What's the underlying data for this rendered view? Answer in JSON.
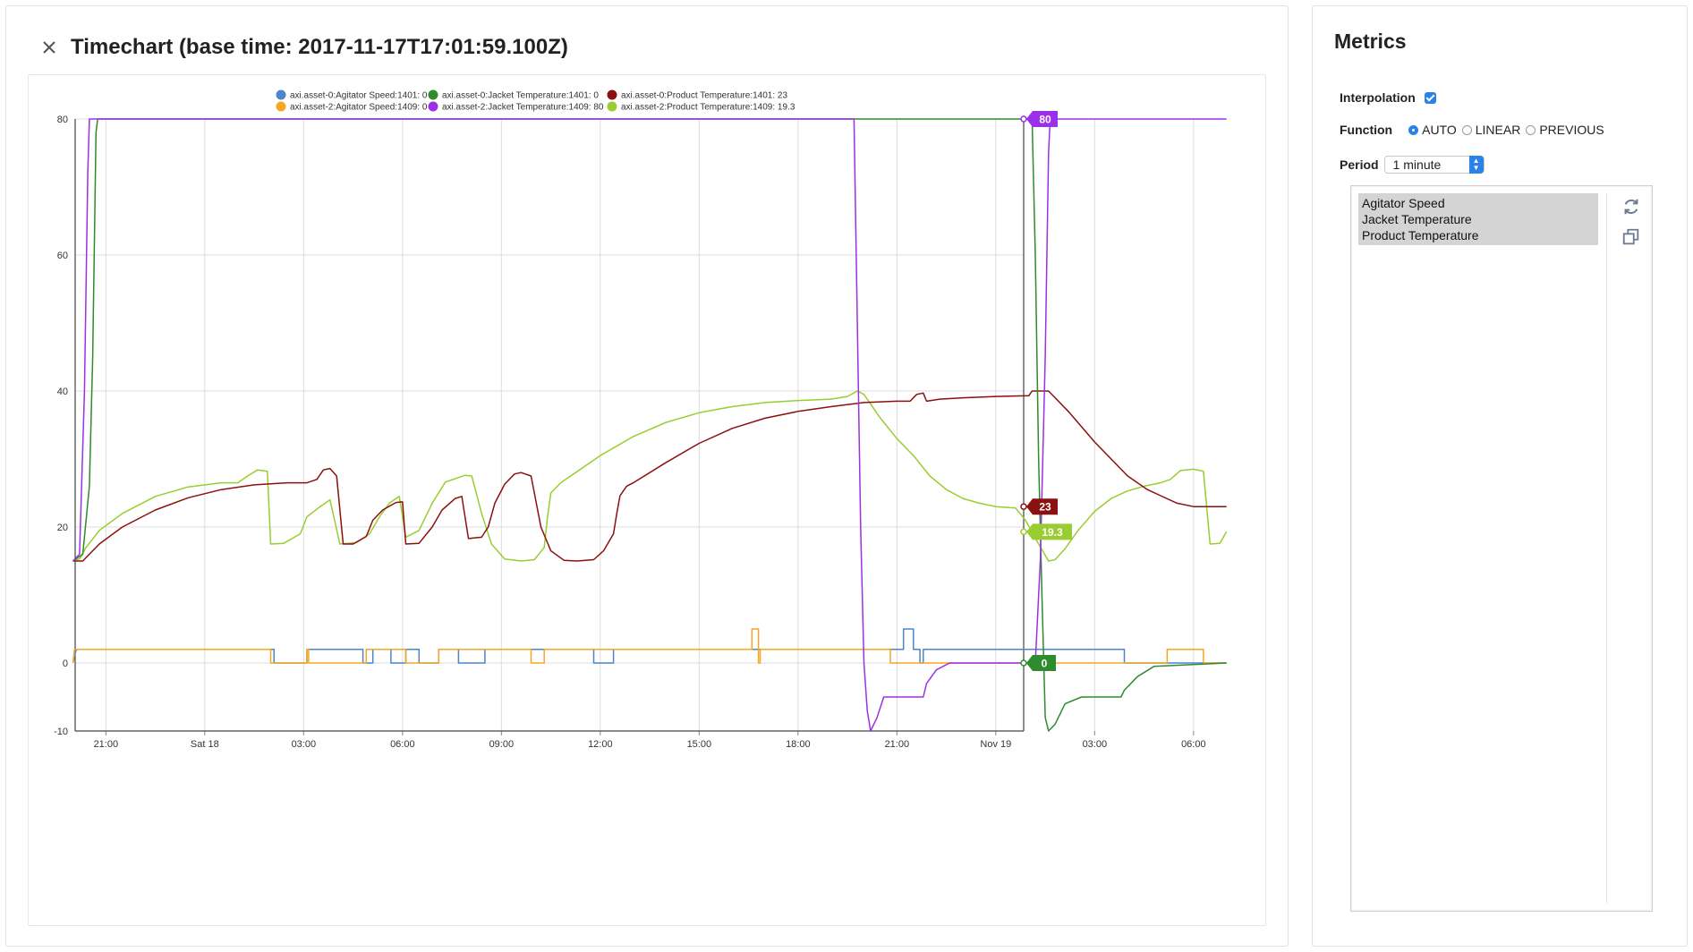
{
  "timechart": {
    "title": "Timechart (base time: 2017-11-17T17:01:59.100Z)"
  },
  "metrics_panel": {
    "title": "Metrics",
    "interpolation_label": "Interpolation",
    "interpolation_checked": true,
    "function_label": "Function",
    "function_options": [
      "AUTO",
      "LINEAR",
      "PREVIOUS"
    ],
    "function_selected": "AUTO",
    "period_label": "Period",
    "period_value": "1 minute",
    "metrics": [
      "Agitator Speed",
      "Jacket Temperature",
      "Product Temperature"
    ],
    "refresh_icon": "refresh-icon",
    "copy_icon": "copy-icon"
  },
  "chart_data": {
    "type": "line",
    "ylim": [
      -10,
      80
    ],
    "yticks": [
      "-10",
      "0",
      "20",
      "40",
      "60",
      "80"
    ],
    "xticks": [
      "21:00",
      "Sat 18",
      "03:00",
      "06:00",
      "09:00",
      "12:00",
      "15:00",
      "18:00",
      "21:00",
      "Nov 19",
      "03:00",
      "06:00"
    ],
    "x_unit": "hours after 2017-11-17T20:00",
    "xlim": [
      0,
      35
    ],
    "legend_position": "top-center",
    "grid": true,
    "series": [
      {
        "name": "axi.asset-0:Agitator Speed:1401: 0",
        "color": "#4a86c8",
        "last_value": null,
        "points": [
          [
            0,
            0
          ],
          [
            0.1,
            2
          ],
          [
            6.1,
            2
          ],
          [
            6.1,
            0
          ],
          [
            7.1,
            0
          ],
          [
            7.1,
            2
          ],
          [
            8.8,
            2
          ],
          [
            8.8,
            0
          ],
          [
            9.1,
            0
          ],
          [
            9.1,
            2
          ],
          [
            9.65,
            2
          ],
          [
            9.65,
            0
          ],
          [
            10.1,
            0
          ],
          [
            10.1,
            2
          ],
          [
            10.5,
            2
          ],
          [
            10.5,
            0
          ],
          [
            11.1,
            0
          ],
          [
            11.1,
            2
          ],
          [
            11.7,
            2
          ],
          [
            11.7,
            0
          ],
          [
            12.5,
            0
          ],
          [
            12.5,
            2
          ],
          [
            15.8,
            2
          ],
          [
            15.8,
            0
          ],
          [
            16.4,
            0
          ],
          [
            16.4,
            2
          ],
          [
            25.2,
            2
          ],
          [
            25.2,
            5
          ],
          [
            25.5,
            5
          ],
          [
            25.5,
            2
          ],
          [
            25.7,
            2
          ],
          [
            25.7,
            0
          ],
          [
            25.8,
            0
          ],
          [
            25.8,
            2
          ],
          [
            31.9,
            2
          ],
          [
            31.9,
            0
          ],
          [
            35,
            0
          ]
        ]
      },
      {
        "name": "axi.asset-2:Agitator Speed:1409: 0",
        "color": "#f5a623",
        "last_value": null,
        "points": [
          [
            0,
            0
          ],
          [
            0.05,
            2
          ],
          [
            6.0,
            2
          ],
          [
            6.0,
            0
          ],
          [
            7.1,
            0
          ],
          [
            7.1,
            2
          ],
          [
            7.15,
            2
          ],
          [
            7.15,
            0
          ],
          [
            8.9,
            0
          ],
          [
            8.9,
            2
          ],
          [
            10.1,
            2
          ],
          [
            10.1,
            0
          ],
          [
            11.1,
            0
          ],
          [
            11.1,
            2
          ],
          [
            13.9,
            2
          ],
          [
            13.9,
            0
          ],
          [
            14.3,
            0
          ],
          [
            14.3,
            2
          ],
          [
            20.6,
            2
          ],
          [
            20.6,
            5
          ],
          [
            20.8,
            5
          ],
          [
            20.8,
            0
          ],
          [
            20.85,
            0
          ],
          [
            20.85,
            2
          ],
          [
            24.8,
            2
          ],
          [
            24.8,
            0
          ],
          [
            33.2,
            0
          ],
          [
            33.2,
            2
          ],
          [
            34.3,
            2
          ],
          [
            34.3,
            0
          ],
          [
            35,
            0
          ]
        ]
      },
      {
        "name": "axi.asset-0:Jacket Temperature:1401: 0",
        "color": "#2e8b2e",
        "last_value": "0",
        "points": [
          [
            0,
            15
          ],
          [
            0.3,
            16
          ],
          [
            0.5,
            26
          ],
          [
            0.6,
            45
          ],
          [
            0.7,
            78
          ],
          [
            0.75,
            80
          ],
          [
            29.1,
            80
          ],
          [
            29.2,
            60
          ],
          [
            29.3,
            30
          ],
          [
            29.4,
            10
          ],
          [
            29.5,
            -8
          ],
          [
            29.6,
            -10
          ],
          [
            29.8,
            -9
          ],
          [
            30.1,
            -6
          ],
          [
            30.6,
            -5
          ],
          [
            31.8,
            -5
          ],
          [
            31.9,
            -4
          ],
          [
            32.3,
            -2
          ],
          [
            32.8,
            -0.5
          ],
          [
            35,
            0
          ]
        ]
      },
      {
        "name": "axi.asset-2:Jacket Temperature:1409: 80",
        "color": "#9b30e8",
        "last_value": "80",
        "points": [
          [
            0,
            15
          ],
          [
            0.2,
            16
          ],
          [
            0.35,
            40
          ],
          [
            0.45,
            72
          ],
          [
            0.5,
            80
          ],
          [
            23.7,
            80
          ],
          [
            23.8,
            50
          ],
          [
            23.9,
            20
          ],
          [
            24.0,
            0
          ],
          [
            24.1,
            -7
          ],
          [
            24.2,
            -10
          ],
          [
            24.4,
            -8
          ],
          [
            24.6,
            -5
          ],
          [
            25.8,
            -5
          ],
          [
            25.9,
            -3
          ],
          [
            26.2,
            -1
          ],
          [
            26.6,
            0
          ],
          [
            29.2,
            0
          ],
          [
            29.35,
            15
          ],
          [
            29.5,
            45
          ],
          [
            29.6,
            75
          ],
          [
            29.65,
            80
          ],
          [
            35,
            80
          ]
        ]
      },
      {
        "name": "axi.asset-0:Product Temperature:1401: 23",
        "color": "#8b1010",
        "last_value": "23",
        "points": [
          [
            0,
            15
          ],
          [
            0.3,
            15
          ],
          [
            0.5,
            16
          ],
          [
            0.8,
            17.5
          ],
          [
            1.5,
            20
          ],
          [
            2.5,
            22.5
          ],
          [
            3.5,
            24.3
          ],
          [
            4.5,
            25.5
          ],
          [
            5.5,
            26.2
          ],
          [
            6.5,
            26.5
          ],
          [
            7.0,
            26.5
          ],
          [
            7.1,
            26.5
          ],
          [
            7.4,
            27
          ],
          [
            7.6,
            28.4
          ],
          [
            7.8,
            28.6
          ],
          [
            8.0,
            27.5
          ],
          [
            8.2,
            17.5
          ],
          [
            8.5,
            17.5
          ],
          [
            8.9,
            18.6
          ],
          [
            9.1,
            21
          ],
          [
            9.4,
            22.5
          ],
          [
            9.8,
            23.6
          ],
          [
            10.0,
            23.7
          ],
          [
            10.1,
            17.5
          ],
          [
            10.5,
            17.6
          ],
          [
            10.9,
            20
          ],
          [
            11.2,
            22.5
          ],
          [
            11.6,
            24.2
          ],
          [
            11.8,
            24.5
          ],
          [
            12.0,
            18.3
          ],
          [
            12.4,
            18.5
          ],
          [
            12.6,
            20
          ],
          [
            12.8,
            23.5
          ],
          [
            13.1,
            26.3
          ],
          [
            13.4,
            27.8
          ],
          [
            13.6,
            28
          ],
          [
            13.9,
            27.5
          ],
          [
            14.2,
            20
          ],
          [
            14.5,
            16.5
          ],
          [
            14.9,
            15.1
          ],
          [
            15.3,
            15
          ],
          [
            15.8,
            15.2
          ],
          [
            16.1,
            16.5
          ],
          [
            16.4,
            19
          ],
          [
            16.5,
            22
          ],
          [
            16.6,
            24.6
          ],
          [
            16.8,
            26
          ],
          [
            17.0,
            26.5
          ],
          [
            18.0,
            29.5
          ],
          [
            19.0,
            32.3
          ],
          [
            20.0,
            34.5
          ],
          [
            21.0,
            36
          ],
          [
            22.0,
            37
          ],
          [
            23.0,
            37.7
          ],
          [
            24.0,
            38.3
          ],
          [
            25.0,
            38.5
          ],
          [
            25.4,
            38.5
          ],
          [
            25.6,
            39.5
          ],
          [
            25.8,
            39.7
          ],
          [
            25.9,
            38.5
          ],
          [
            26.3,
            38.8
          ],
          [
            27.0,
            39
          ],
          [
            28.0,
            39.2
          ],
          [
            29.0,
            39.3
          ],
          [
            29.1,
            40
          ],
          [
            29.6,
            40
          ],
          [
            30.2,
            37
          ],
          [
            31.0,
            32.5
          ],
          [
            32.0,
            27.5
          ],
          [
            32.6,
            25.5
          ],
          [
            33.0,
            24.6
          ],
          [
            33.5,
            23.5
          ],
          [
            34.0,
            23
          ],
          [
            34.5,
            23
          ],
          [
            35,
            23
          ]
        ]
      },
      {
        "name": "axi.asset-2:Product Temperature:1409: 19.3",
        "color": "#9acd32",
        "last_value": "19.3",
        "points": [
          [
            0,
            15
          ],
          [
            0.2,
            15.3
          ],
          [
            0.4,
            17
          ],
          [
            0.8,
            19.5
          ],
          [
            1.5,
            22
          ],
          [
            2.5,
            24.5
          ],
          [
            3.5,
            25.9
          ],
          [
            4.5,
            26.5
          ],
          [
            5.0,
            26.5
          ],
          [
            5.3,
            27.5
          ],
          [
            5.6,
            28.4
          ],
          [
            5.9,
            28.2
          ],
          [
            6.0,
            17.5
          ],
          [
            6.4,
            17.6
          ],
          [
            6.9,
            19
          ],
          [
            7.1,
            21.5
          ],
          [
            7.5,
            23
          ],
          [
            7.8,
            24
          ],
          [
            8.1,
            17.5
          ],
          [
            8.6,
            17.7
          ],
          [
            9.0,
            19
          ],
          [
            9.3,
            21.5
          ],
          [
            9.6,
            23.5
          ],
          [
            9.9,
            24.5
          ],
          [
            10.1,
            18.5
          ],
          [
            10.5,
            19.5
          ],
          [
            10.9,
            23.5
          ],
          [
            11.3,
            26.6
          ],
          [
            11.9,
            27.6
          ],
          [
            12.1,
            27.5
          ],
          [
            12.4,
            22
          ],
          [
            12.7,
            17.5
          ],
          [
            13.1,
            15.3
          ],
          [
            13.6,
            15
          ],
          [
            14.0,
            15.2
          ],
          [
            14.3,
            17
          ],
          [
            14.4,
            21.5
          ],
          [
            14.5,
            25
          ],
          [
            14.8,
            26.5
          ],
          [
            16.0,
            30.5
          ],
          [
            17.0,
            33.3
          ],
          [
            18.0,
            35.4
          ],
          [
            19.0,
            36.8
          ],
          [
            20.0,
            37.7
          ],
          [
            21.0,
            38.3
          ],
          [
            22.0,
            38.6
          ],
          [
            23.0,
            38.8
          ],
          [
            23.5,
            39.2
          ],
          [
            23.8,
            40
          ],
          [
            24.0,
            39.5
          ],
          [
            24.5,
            36
          ],
          [
            25.0,
            33
          ],
          [
            25.5,
            30.5
          ],
          [
            26.0,
            27.5
          ],
          [
            26.5,
            25.5
          ],
          [
            27.0,
            24.2
          ],
          [
            27.5,
            23.5
          ],
          [
            28.0,
            23
          ],
          [
            28.6,
            22.8
          ],
          [
            28.9,
            21
          ],
          [
            29.3,
            17.5
          ],
          [
            29.6,
            15
          ],
          [
            29.8,
            15.2
          ],
          [
            30.1,
            16.8
          ],
          [
            30.5,
            19.5
          ],
          [
            31.0,
            22.3
          ],
          [
            31.5,
            24.2
          ],
          [
            32.0,
            25.3
          ],
          [
            32.5,
            26
          ],
          [
            33.0,
            26.5
          ],
          [
            33.3,
            27
          ],
          [
            33.6,
            28.3
          ],
          [
            34.0,
            28.5
          ],
          [
            34.3,
            28.2
          ],
          [
            34.5,
            17.5
          ],
          [
            34.8,
            17.6
          ],
          [
            35,
            19.3
          ]
        ]
      }
    ]
  }
}
